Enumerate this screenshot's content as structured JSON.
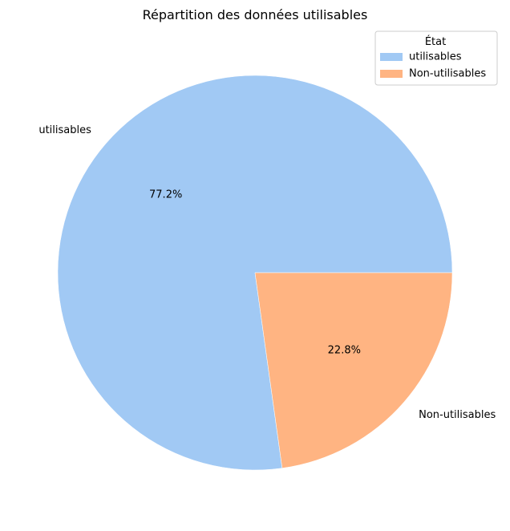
{
  "chart_data": {
    "type": "pie",
    "title": "Répartition des données utilisables",
    "slices": [
      {
        "label": "utilisables",
        "value": 77.2,
        "pct_label": "77.2%",
        "color": "#a1c9f4"
      },
      {
        "label": "Non-utilisables",
        "value": 22.8,
        "pct_label": "22.8%",
        "color": "#ffb482"
      }
    ],
    "legend": {
      "title": "État",
      "placement": "top-right",
      "entries": [
        "utilisables",
        "Non-utilisables"
      ]
    },
    "start_angle_deg": 0,
    "direction": "counterclockwise"
  }
}
